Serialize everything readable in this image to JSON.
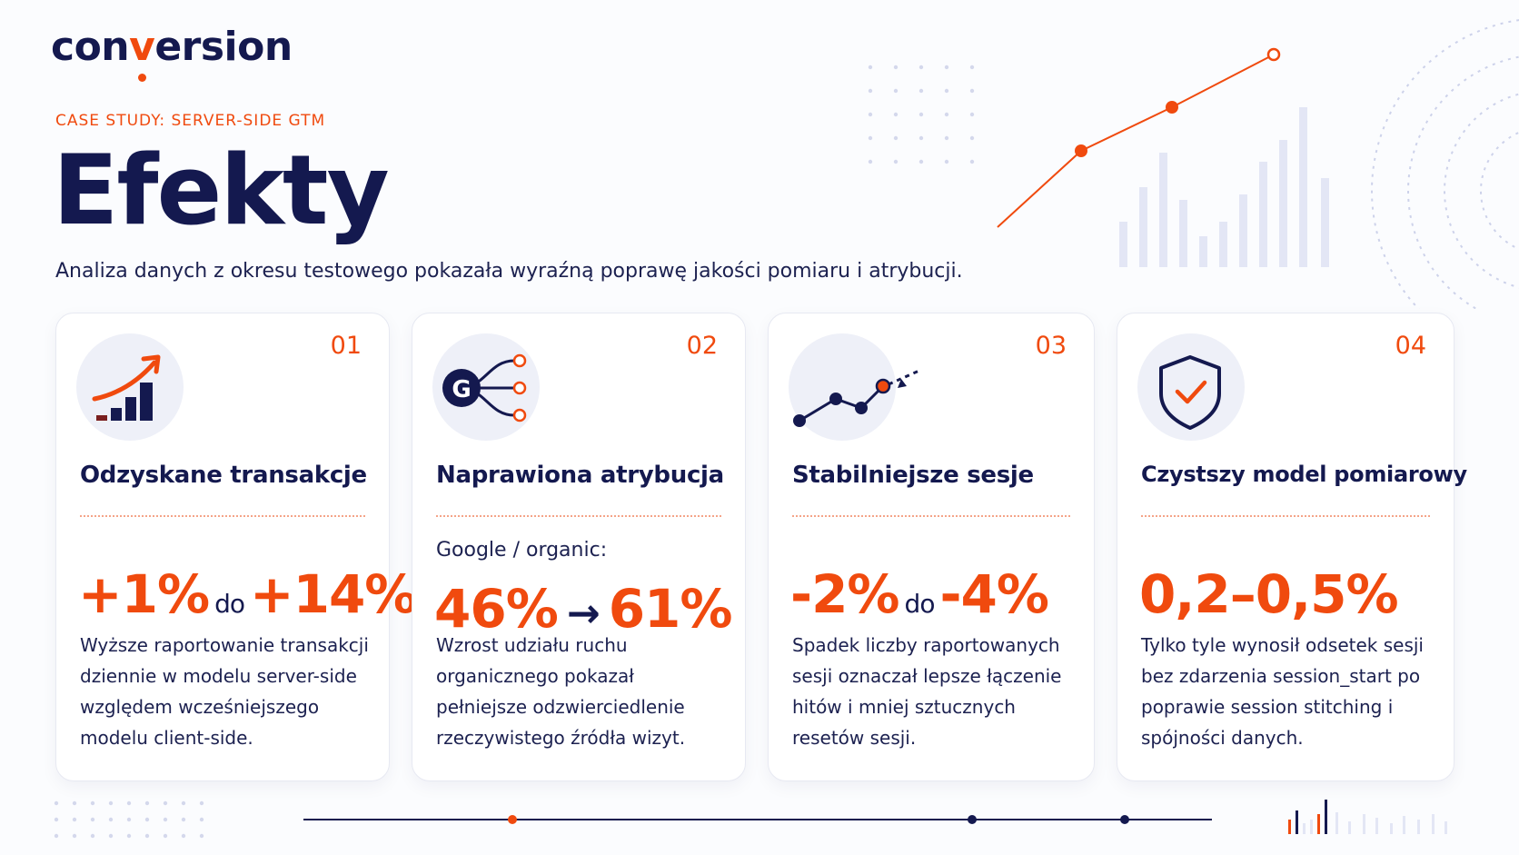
{
  "logo": {
    "pre": "con",
    "accent": "v",
    "post": "ersion"
  },
  "eyebrow": "CASE STUDY:  SERVER-SIDE GTM",
  "title": "Efekty",
  "subtitle": "Analiza danych z okresu testowego pokazała wyraźną poprawę jakości pomiaru i atrybucji.",
  "colors": {
    "accent": "#f04a0e",
    "navy": "#14194f",
    "soft": "#eef0f8"
  },
  "cards": [
    {
      "num": "01",
      "icon": "bar-growth-icon",
      "title": "Odzyskane transakcje",
      "metric_a": "+1%",
      "metric_join": "do",
      "metric_b": "+14%",
      "desc": "Wyższe raportowanie transakcji dziennie w modelu server-side względem wcześniejszego modelu client-side."
    },
    {
      "num": "02",
      "icon": "google-attribution-icon",
      "title": "Naprawiona atrybucja",
      "pre": "Google / organic:",
      "metric_a": "46%",
      "metric_join": "→",
      "metric_b": "61%",
      "desc": "Wzrost udziału ruchu organicznego pokazał pełniejsze odzwierciedlenie rzeczywistego źródła wizyt."
    },
    {
      "num": "03",
      "icon": "session-path-icon",
      "title": "Stabilniejsze sesje",
      "metric_a": "-2%",
      "metric_join": "do",
      "metric_b": "-4%",
      "desc": "Spadek liczby raportowanych sesji oznaczał lepsze łączenie hitów i mniej sztucznych resetów sesji."
    },
    {
      "num": "04",
      "icon": "shield-check-icon",
      "title": "Czystszy model pomiarowy",
      "metric_a": "0,2–0,5%",
      "desc": "Tylko tyle wynosił odsetek sesji bez zdarzenia session_start po poprawie session stitching i spójności danych."
    }
  ]
}
